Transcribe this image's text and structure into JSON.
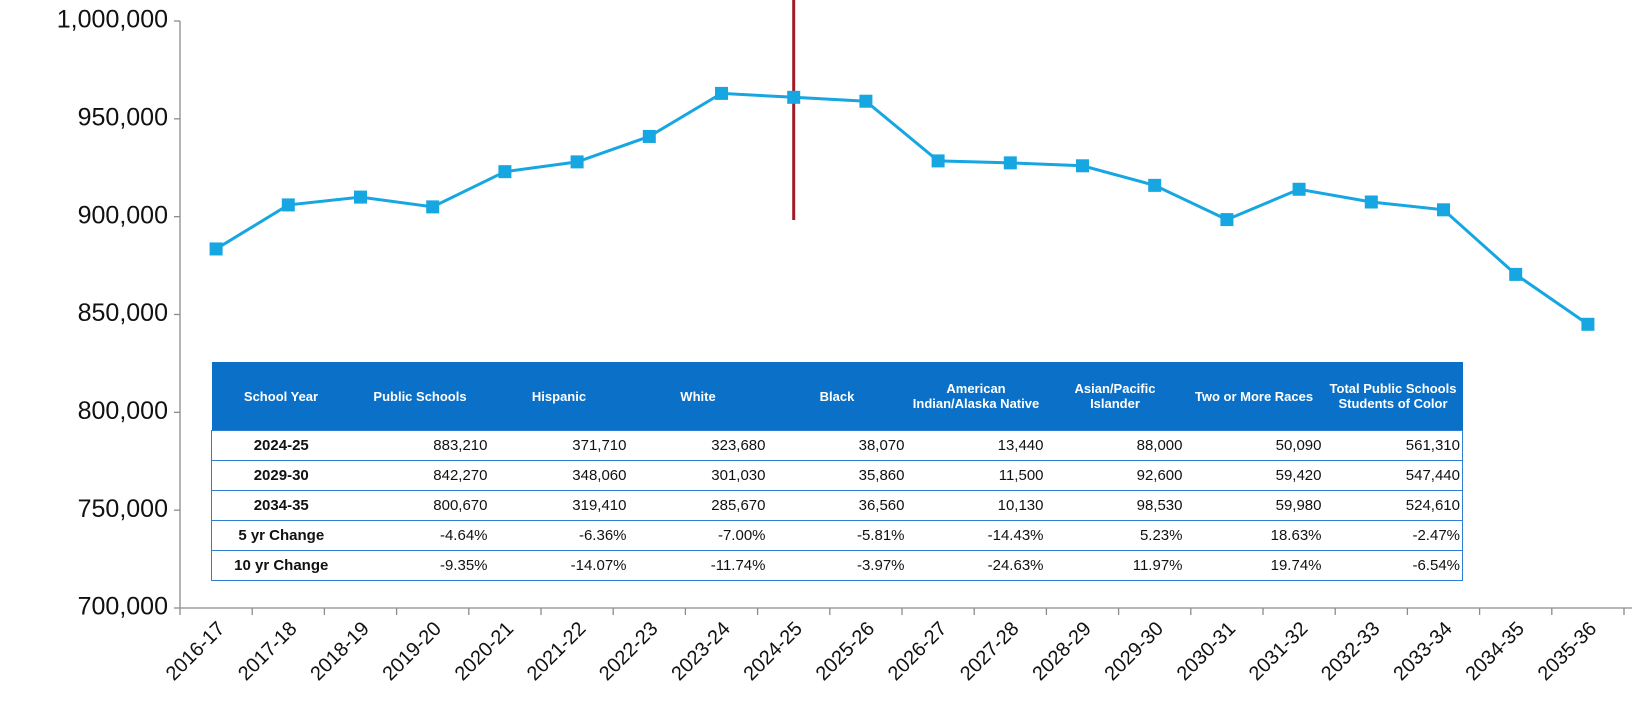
{
  "chart_data": {
    "type": "line",
    "categories": [
      "2016-17",
      "2017-18",
      "2018-19",
      "2019-20",
      "2020-21",
      "2021-22",
      "2022-23",
      "2023-24",
      "2024-25",
      "2025-26",
      "2026-27",
      "2027-28",
      "2028-29",
      "2029-30",
      "2030-31",
      "2031-32",
      "2032-33",
      "2033-34",
      "2034-35",
      "2035-36"
    ],
    "values": [
      883500,
      906000,
      910000,
      905000,
      923000,
      928000,
      941000,
      963000,
      961000,
      959000,
      928500,
      927500,
      926000,
      916000,
      898500,
      914000,
      907500,
      903500,
      870500,
      845000
    ],
    "color": "#16a6e1",
    "ylim": [
      700000,
      1000000
    ],
    "yticks": [
      {
        "value": 700000,
        "label": "700,000"
      },
      {
        "value": 750000,
        "label": "750,000"
      },
      {
        "value": 800000,
        "label": "800,000"
      },
      {
        "value": 850000,
        "label": "850,000"
      },
      {
        "value": 900000,
        "label": "900,000"
      },
      {
        "value": 950000,
        "label": "950,000"
      },
      {
        "value": 1000000,
        "label": "1,000,000"
      }
    ],
    "grid": false
  },
  "table": {
    "columns": [
      "School Year",
      "Public Schools",
      "Hispanic",
      "White",
      "Black",
      "American Indian/Alaska Native",
      "Asian/Pacific Islander",
      "Two or More Races",
      "Total Public Schools Students of Color"
    ],
    "rows": [
      [
        "2024-25",
        "883,210",
        "371,710",
        "323,680",
        "38,070",
        "13,440",
        "88,000",
        "50,090",
        "561,310"
      ],
      [
        "2029-30",
        "842,270",
        "348,060",
        "301,030",
        "35,860",
        "11,500",
        "92,600",
        "59,420",
        "547,440"
      ],
      [
        "2034-35",
        "800,670",
        "319,410",
        "285,670",
        "36,560",
        "10,130",
        "98,530",
        "59,980",
        "524,610"
      ],
      [
        "5 yr Change",
        "-4.64%",
        "-6.36%",
        "-7.00%",
        "-5.81%",
        "-14.43%",
        "5.23%",
        "18.63%",
        "-2.47%"
      ],
      [
        "10 yr Change",
        "-9.35%",
        "-14.07%",
        "-11.74%",
        "-3.97%",
        "-24.63%",
        "11.97%",
        "19.74%",
        "-6.54%"
      ]
    ]
  }
}
